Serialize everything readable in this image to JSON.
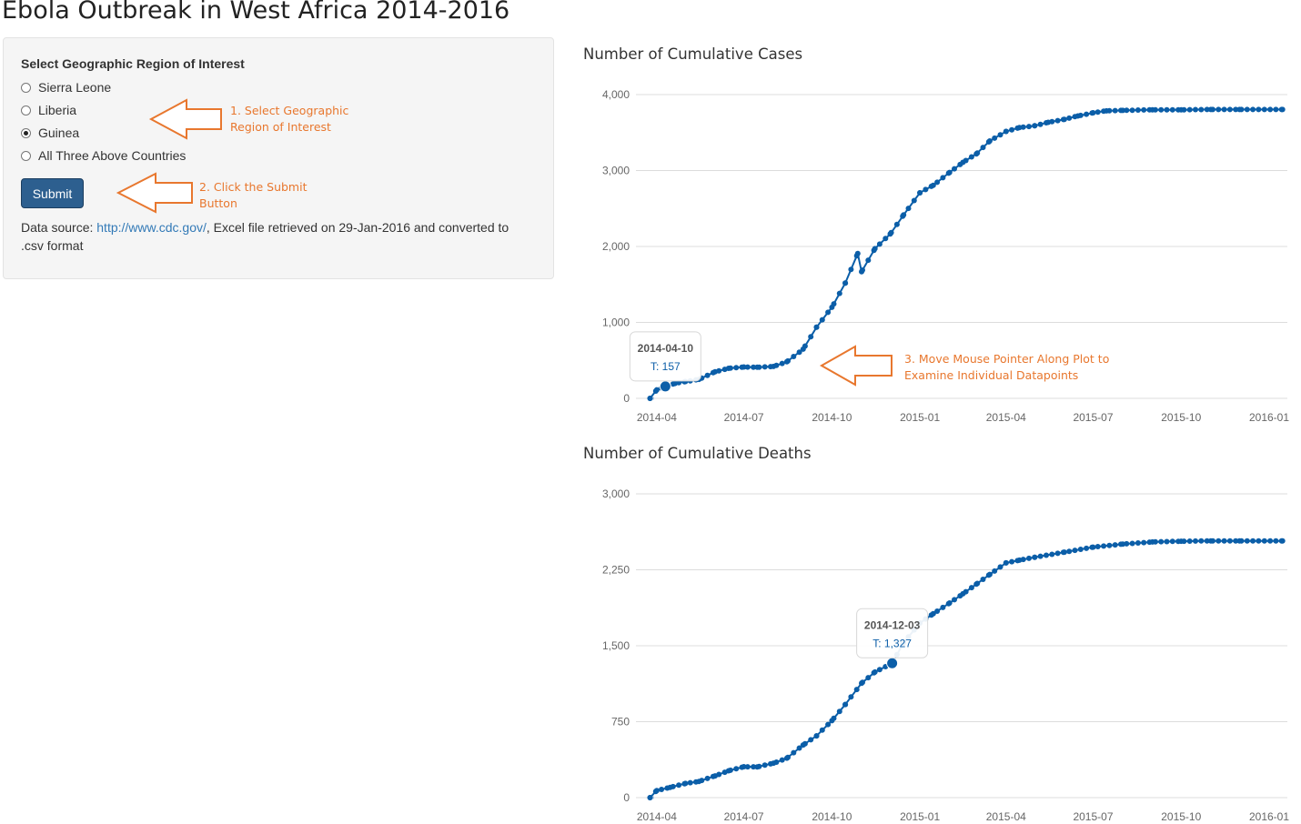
{
  "page": {
    "title": "Ebola Outbreak in West Africa 2014-2016"
  },
  "sidebar": {
    "region_label": "Select Geographic Region of Interest",
    "options": [
      {
        "label": "Sierra Leone",
        "checked": false
      },
      {
        "label": "Liberia",
        "checked": false
      },
      {
        "label": "Guinea",
        "checked": true
      },
      {
        "label": "All Three Above Countries",
        "checked": false
      }
    ],
    "submit_label": "Submit",
    "data_source": {
      "prefix": "Data source: ",
      "link_text": "http://www.cdc.gov/",
      "suffix": ", Excel file retrieved on 29-Jan-2016 and converted to .csv format"
    }
  },
  "annotations": {
    "step1": "1. Select Geographic Region of Interest",
    "step2": "2. Click the Submit Button",
    "step3": "3. Move Mouse Pointer Along Plot to Examine Individual Datapoints",
    "arrow_color": "#e8772e"
  },
  "colors": {
    "accent": "#0b5ea8",
    "annotation": "#e8772e",
    "button": "#2d5f8f",
    "link": "#337ab7"
  },
  "chart_data": [
    {
      "type": "scatter",
      "title": "Number of Cumulative Cases",
      "xlabel": "",
      "ylabel": "",
      "x_ticks": [
        "2014-04",
        "2014-07",
        "2014-10",
        "2015-01",
        "2015-04",
        "2015-07",
        "2015-10",
        "2016-01"
      ],
      "y_ticks": [
        "0",
        "1,000",
        "2,000",
        "3,000",
        "4,000"
      ],
      "ylim": [
        0,
        4000
      ],
      "xlim": [
        "2014-03-15",
        "2016-01-20"
      ],
      "grid": true,
      "series": [
        {
          "color": "#0b5ea8",
          "points": [
            [
              "2014-03-25",
              0
            ],
            [
              "2014-04-01",
              112
            ],
            [
              "2014-04-10",
              157
            ],
            [
              "2014-04-20",
              197
            ],
            [
              "2014-05-01",
              221
            ],
            [
              "2014-05-15",
              250
            ],
            [
              "2014-06-01",
              350
            ],
            [
              "2014-06-15",
              395
            ],
            [
              "2014-07-01",
              413
            ],
            [
              "2014-07-15",
              409
            ],
            [
              "2014-08-01",
              420
            ],
            [
              "2014-08-15",
              482
            ],
            [
              "2014-09-01",
              648
            ],
            [
              "2014-09-15",
              936
            ],
            [
              "2014-10-01",
              1199
            ],
            [
              "2014-10-15",
              1519
            ],
            [
              "2014-10-28",
              1906
            ],
            [
              "2014-11-01",
              1667
            ],
            [
              "2014-11-15",
              1971
            ],
            [
              "2014-12-01",
              2164
            ],
            [
              "2014-12-15",
              2416
            ],
            [
              "2015-01-01",
              2707
            ],
            [
              "2015-01-15",
              2806
            ],
            [
              "2015-02-01",
              2975
            ],
            [
              "2015-02-15",
              3108
            ],
            [
              "2015-03-01",
              3219
            ],
            [
              "2015-03-15",
              3389
            ],
            [
              "2015-04-01",
              3515
            ],
            [
              "2015-04-15",
              3565
            ],
            [
              "2015-05-01",
              3589
            ],
            [
              "2015-05-15",
              3635
            ],
            [
              "2015-06-01",
              3674
            ],
            [
              "2015-06-15",
              3718
            ],
            [
              "2015-07-01",
              3760
            ],
            [
              "2015-07-15",
              3786
            ],
            [
              "2015-08-01",
              3792
            ],
            [
              "2015-09-01",
              3800
            ],
            [
              "2015-10-01",
              3800
            ],
            [
              "2015-11-01",
              3804
            ],
            [
              "2015-12-01",
              3804
            ],
            [
              "2016-01-15",
              3804
            ]
          ]
        }
      ],
      "tooltip": {
        "date": "2014-04-10",
        "label": "T: 157",
        "value": 157
      }
    },
    {
      "type": "scatter",
      "title": "Number of Cumulative Deaths",
      "xlabel": "",
      "ylabel": "",
      "x_ticks": [
        "2014-04",
        "2014-07",
        "2014-10",
        "2015-01",
        "2015-04",
        "2015-07",
        "2015-10",
        "2016-01"
      ],
      "y_ticks": [
        "0",
        "750",
        "1,500",
        "2,250",
        "3,000"
      ],
      "ylim": [
        0,
        3000
      ],
      "xlim": [
        "2014-03-15",
        "2016-01-20"
      ],
      "grid": true,
      "series": [
        {
          "color": "#0b5ea8",
          "points": [
            [
              "2014-03-25",
              0
            ],
            [
              "2014-04-01",
              70
            ],
            [
              "2014-04-15",
              101
            ],
            [
              "2014-05-01",
              140
            ],
            [
              "2014-05-15",
              160
            ],
            [
              "2014-06-01",
              215
            ],
            [
              "2014-06-15",
              265
            ],
            [
              "2014-07-01",
              305
            ],
            [
              "2014-07-15",
              304
            ],
            [
              "2014-08-01",
              340
            ],
            [
              "2014-08-15",
              390
            ],
            [
              "2014-09-01",
              520
            ],
            [
              "2014-09-15",
              610
            ],
            [
              "2014-10-01",
              760
            ],
            [
              "2014-10-15",
              920
            ],
            [
              "2014-11-01",
              1130
            ],
            [
              "2014-11-15",
              1240
            ],
            [
              "2014-12-03",
              1327
            ],
            [
              "2014-12-15",
              1530
            ],
            [
              "2015-01-01",
              1725
            ],
            [
              "2015-01-15",
              1816
            ],
            [
              "2015-02-01",
              1922
            ],
            [
              "2015-02-15",
              2013
            ],
            [
              "2015-03-01",
              2108
            ],
            [
              "2015-03-15",
              2204
            ],
            [
              "2015-04-01",
              2318
            ],
            [
              "2015-04-15",
              2345
            ],
            [
              "2015-05-01",
              2374
            ],
            [
              "2015-06-01",
              2424
            ],
            [
              "2015-07-01",
              2474
            ],
            [
              "2015-08-01",
              2504
            ],
            [
              "2015-09-01",
              2525
            ],
            [
              "2015-10-01",
              2532
            ],
            [
              "2015-11-01",
              2536
            ],
            [
              "2015-12-01",
              2536
            ],
            [
              "2016-01-15",
              2536
            ]
          ]
        }
      ],
      "tooltip": {
        "date": "2014-12-03",
        "label": "T: 1,327",
        "value": 1327
      }
    }
  ]
}
